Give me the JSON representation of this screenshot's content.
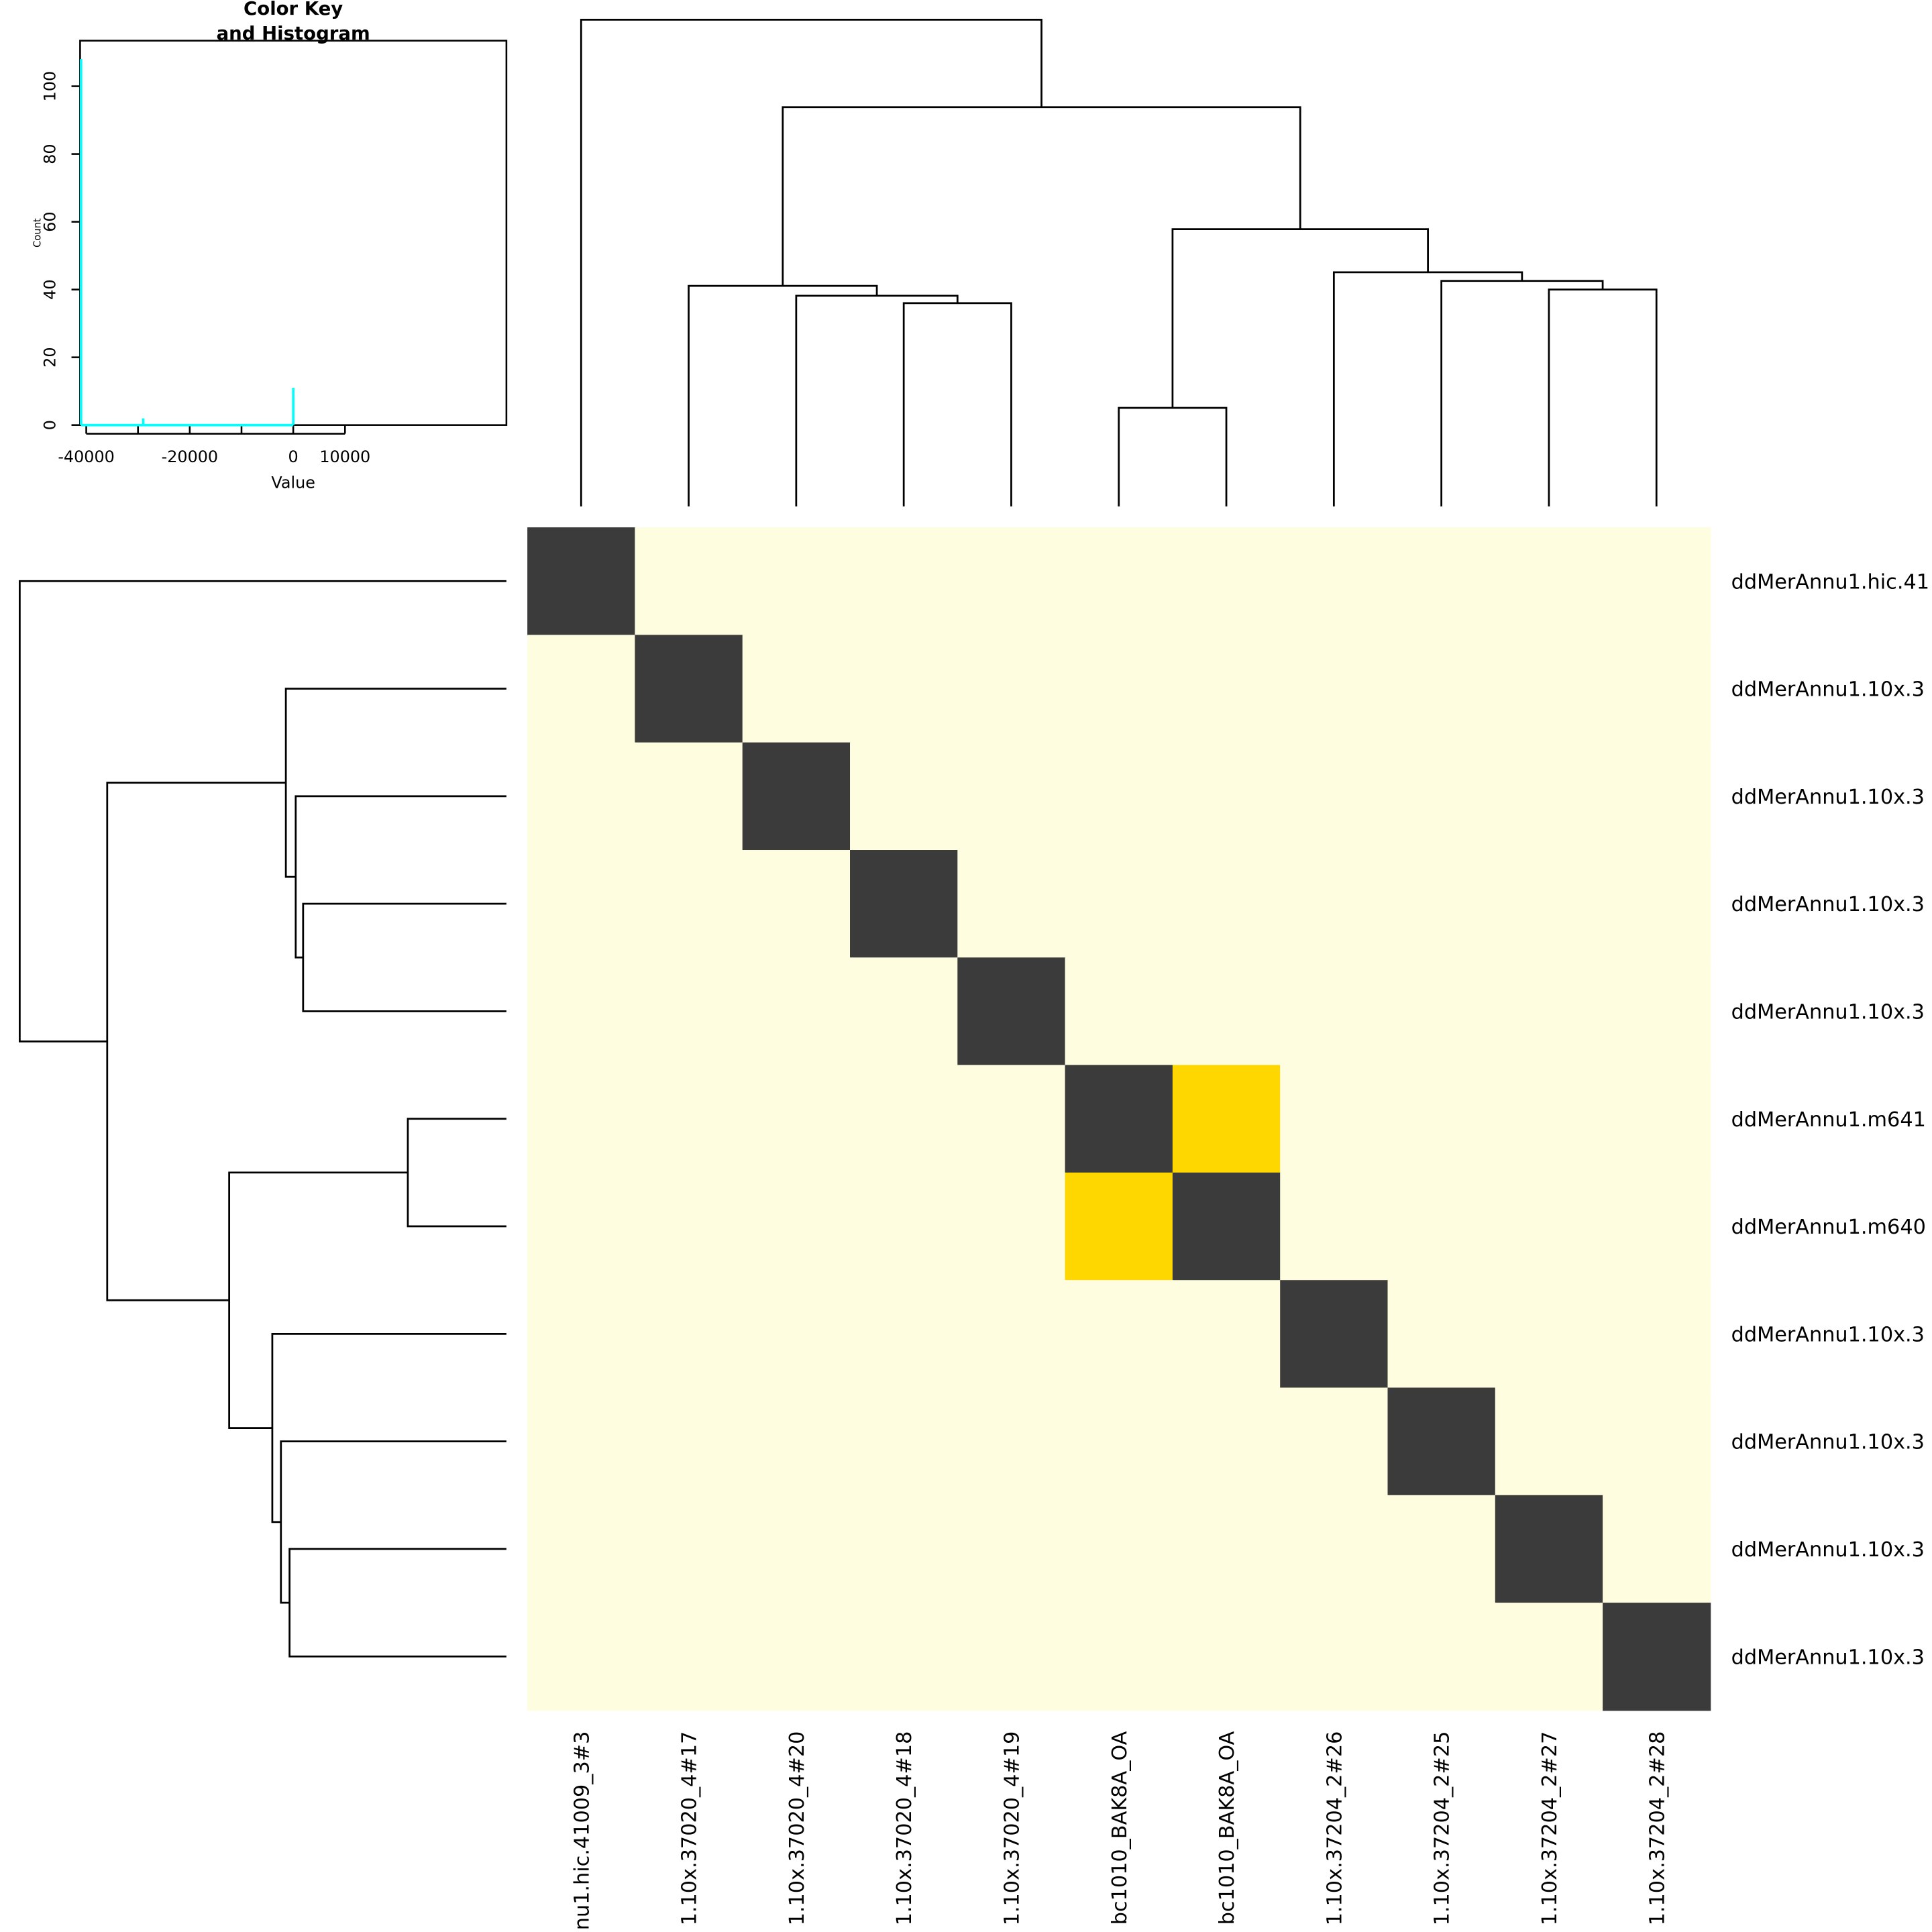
{
  "chart_data": {
    "type": "heatmap",
    "row_labels": [
      "ddMerAnnu1.hic.41",
      "ddMerAnnu1.10x.3",
      "ddMerAnnu1.10x.3",
      "ddMerAnnu1.10x.3",
      "ddMerAnnu1.10x.3",
      "ddMerAnnu1.m641",
      "ddMerAnnu1.m640",
      "ddMerAnnu1.10x.3",
      "ddMerAnnu1.10x.3",
      "ddMerAnnu1.10x.3",
      "ddMerAnnu1.10x.3"
    ],
    "col_labels": [
      "nu1.hic.41009_3#3",
      "1.10x.37020_4#17",
      "1.10x.37020_4#20",
      "1.10x.37020_4#18",
      "1.10x.37020_4#19",
      "bc1010_BAK8A_OA",
      "bc1010_BAK8A_OA",
      "1.10x.37204_2#26",
      "1.10x.37204_2#25",
      "1.10x.37204_2#27",
      "1.10x.37204_2#28"
    ],
    "diagonal_value": 0,
    "offdiagonal_value": -41000,
    "special_pairs": [
      [
        5,
        6,
        -29000
      ],
      [
        6,
        5,
        -29000
      ]
    ],
    "colors": {
      "low": "#FEFDDF",
      "mid": "#FFD700",
      "high": "#3B3B3B",
      "histogram": "#00FFFF"
    },
    "dendrogram_merges": [
      [
        3,
        4,
        165
      ],
      [
        2,
        11,
        171
      ],
      [
        1,
        12,
        179
      ],
      [
        5,
        6,
        80
      ],
      [
        9,
        10,
        176
      ],
      [
        8,
        15,
        183
      ],
      [
        7,
        16,
        190
      ],
      [
        14,
        17,
        225
      ],
      [
        13,
        18,
        324
      ],
      [
        0,
        19,
        395
      ]
    ],
    "color_key": {
      "title_line1": "Color Key",
      "title_line2": "and Histogram",
      "xlabel": "Value",
      "ylabel": "Count",
      "xticks": [
        -40000,
        -30000,
        -20000,
        -10000,
        0,
        10000
      ],
      "xtick_labels": [
        "-40000",
        "",
        "-20000",
        "",
        "0",
        "10000"
      ],
      "yticks": [
        "0",
        "20",
        "40",
        "60",
        "80",
        "100"
      ],
      "xlim": [
        -41000,
        41000
      ],
      "ylim": [
        0,
        113
      ],
      "histogram": [
        {
          "value": -41000,
          "count": 108
        },
        {
          "value": -29000,
          "count": 2
        },
        {
          "value": 0,
          "count": 11
        }
      ]
    }
  }
}
